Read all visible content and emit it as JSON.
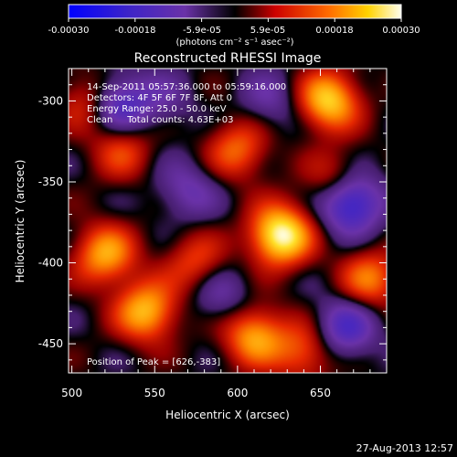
{
  "colors": {
    "background": "#000000",
    "foreground": "#ffffff",
    "colormap": [
      "#0000ff",
      "#4b2aa8",
      "#7a3cb0",
      "#000000",
      "#cc0000",
      "#ff7a00",
      "#ffd200",
      "#ffffe6"
    ]
  },
  "colorbar": {
    "ticks": [
      "-0.00030",
      "-0.00018",
      "-5.9e-05",
      "5.9e-05",
      "0.00018",
      "0.00030"
    ],
    "units": "(photons cm⁻² s⁻¹ asec⁻²)"
  },
  "info": {
    "time_range": "14-Sep-2011 05:57:36.000 to 05:59:16.000",
    "detectors": "Detectors: 4F 5F 6F 7F 8F, Att 0",
    "energy": "Energy Range: 25.0 - 50.0 keV",
    "clean": "Clean     Total counts: 4.63E+03",
    "peak": "Position of Peak = [626,-383]"
  },
  "footer": {
    "date": "27-Aug-2013 12:57"
  },
  "chart_data": {
    "type": "heatmap",
    "title": "Reconstructed RHESSI Image",
    "xlabel": "Heliocentric X (arcsec)",
    "ylabel": "Heliocentric Y (arcsec)",
    "xlim": [
      498,
      690
    ],
    "ylim": [
      -468,
      -280
    ],
    "x_ticks": [
      500,
      550,
      600,
      650
    ],
    "y_ticks": [
      -300,
      -350,
      -400,
      -450
    ],
    "colorbar_range": [
      -0.0003,
      0.0003
    ],
    "peak": {
      "x": 626,
      "y": -383
    },
    "sources": [
      {
        "x": 626,
        "y": -383,
        "value": 0.0003
      },
      {
        "x": 655,
        "y": -300,
        "value": 0.00024
      },
      {
        "x": 545,
        "y": -430,
        "value": 0.00022
      },
      {
        "x": 520,
        "y": -395,
        "value": 0.0002
      },
      {
        "x": 610,
        "y": -445,
        "value": 0.0002
      },
      {
        "x": 680,
        "y": -410,
        "value": 0.00016
      },
      {
        "x": 600,
        "y": -330,
        "value": 0.00015
      },
      {
        "x": 530,
        "y": -330,
        "value": 0.00012
      },
      {
        "x": 510,
        "y": -300,
        "value": 0.00012
      },
      {
        "x": 640,
        "y": -455,
        "value": 0.00014
      },
      {
        "x": 575,
        "y": -400,
        "value": 0.00012
      },
      {
        "x": 660,
        "y": -350,
        "value": 0.00013
      },
      {
        "x": 570,
        "y": -355,
        "value": -0.0001
      },
      {
        "x": 528,
        "y": -302,
        "value": -0.00018
      },
      {
        "x": 668,
        "y": -362,
        "value": -0.00026
      },
      {
        "x": 620,
        "y": -300,
        "value": -8e-05
      },
      {
        "x": 590,
        "y": -420,
        "value": -9e-05
      },
      {
        "x": 665,
        "y": -440,
        "value": -0.00016
      },
      {
        "x": 555,
        "y": -300,
        "value": -6e-05
      }
    ]
  }
}
